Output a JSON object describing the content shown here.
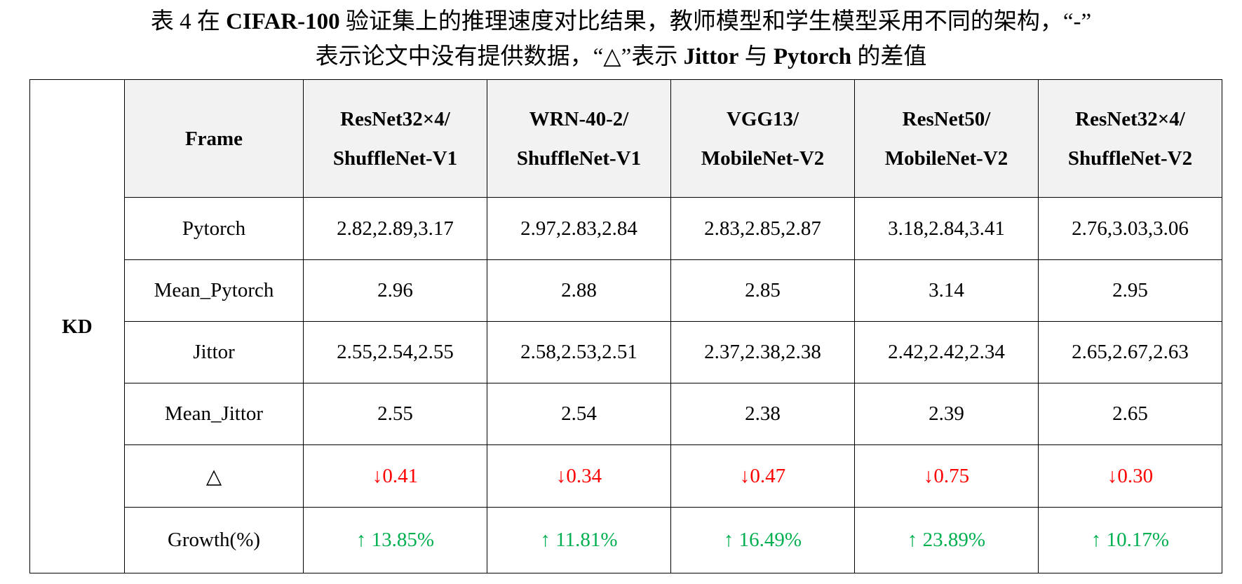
{
  "caption": {
    "line1_prefix": "表 4 在 ",
    "line1_bold": "CIFAR-100",
    "line1_suffix": " 验证集上的推理速度对比结果，教师模型和学生模型采用不同的架构，“-”",
    "line2_prefix": "表示论文中没有提供数据，“△”表示 ",
    "line2_bold1": "Jittor",
    "line2_mid": " 与 ",
    "line2_bold2": "Pytorch",
    "line2_suffix": " 的差值"
  },
  "table": {
    "group_label": "KD",
    "frame_header": "Frame",
    "columns": [
      {
        "top": "ResNet32×4/",
        "bottom": "ShuffleNet-V1"
      },
      {
        "top": "WRN-40-2/",
        "bottom": "ShuffleNet-V1"
      },
      {
        "top": "VGG13/",
        "bottom": "MobileNet-V2"
      },
      {
        "top": "ResNet50/",
        "bottom": "MobileNet-V2"
      },
      {
        "top": "ResNet32×4/",
        "bottom": "ShuffleNet-V2"
      }
    ],
    "rows": [
      {
        "label": "Pytorch",
        "cells": [
          "2.82,2.89,3.17",
          "2.97,2.83,2.84",
          "2.83,2.85,2.87",
          "3.18,2.84,3.41",
          "2.76,3.03,3.06"
        ]
      },
      {
        "label": "Mean_Pytorch",
        "cells": [
          "2.96",
          "2.88",
          "2.85",
          "3.14",
          "2.95"
        ]
      },
      {
        "label": "Jittor",
        "cells": [
          "2.55,2.54,2.55",
          "2.58,2.53,2.51",
          "2.37,2.38,2.38",
          "2.42,2.42,2.34",
          "2.65,2.67,2.63"
        ]
      },
      {
        "label": "Mean_Jittor",
        "cells": [
          "2.55",
          "2.54",
          "2.38",
          "2.39",
          "2.65"
        ]
      }
    ],
    "delta_row": {
      "label": "△",
      "arrow": "↓",
      "values": [
        "0.41",
        "0.34",
        "0.47",
        "0.75",
        "0.30"
      ],
      "color": "#ff0000"
    },
    "growth_row": {
      "label": "Growth(%)",
      "arrow": "↑",
      "values": [
        "13.85%",
        "11.81%",
        "16.49%",
        "23.89%",
        "10.17%"
      ],
      "color": "#00b050"
    },
    "header_bg": "#f2f2f2"
  }
}
